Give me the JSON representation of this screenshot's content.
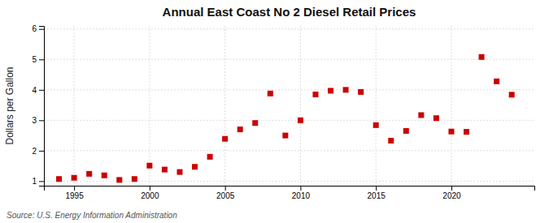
{
  "chart_data": {
    "type": "scatter",
    "title": "Annual East Coast No 2 Diesel Retail Prices",
    "ylabel": "Dollars per Gallon",
    "annotations": [
      "Source: U.S. Energy Information Administration"
    ],
    "x": [
      1994,
      1995,
      1996,
      1997,
      1998,
      1999,
      2000,
      2001,
      2002,
      2003,
      2004,
      2005,
      2006,
      2007,
      2008,
      2009,
      2010,
      2011,
      2012,
      2013,
      2014,
      2015,
      2016,
      2017,
      2018,
      2019,
      2020,
      2021,
      2022,
      2023,
      2024
    ],
    "values": [
      1.07,
      1.11,
      1.24,
      1.19,
      1.04,
      1.07,
      1.51,
      1.38,
      1.3,
      1.47,
      1.8,
      2.39,
      2.7,
      2.91,
      3.88,
      2.5,
      3.0,
      3.85,
      3.97,
      4.0,
      3.93,
      2.84,
      2.33,
      2.65,
      3.17,
      3.07,
      2.63,
      2.62,
      5.08,
      4.28,
      3.84
    ],
    "color": "#cc0000",
    "marker": "square",
    "xlim": [
      1993.0,
      2025.5
    ],
    "ylim": [
      0.85,
      6.1
    ],
    "xticks": [
      1995,
      2000,
      2005,
      2010,
      2015,
      2020
    ],
    "yticks": [
      1,
      2,
      3,
      4,
      5,
      6
    ],
    "grid": true
  }
}
